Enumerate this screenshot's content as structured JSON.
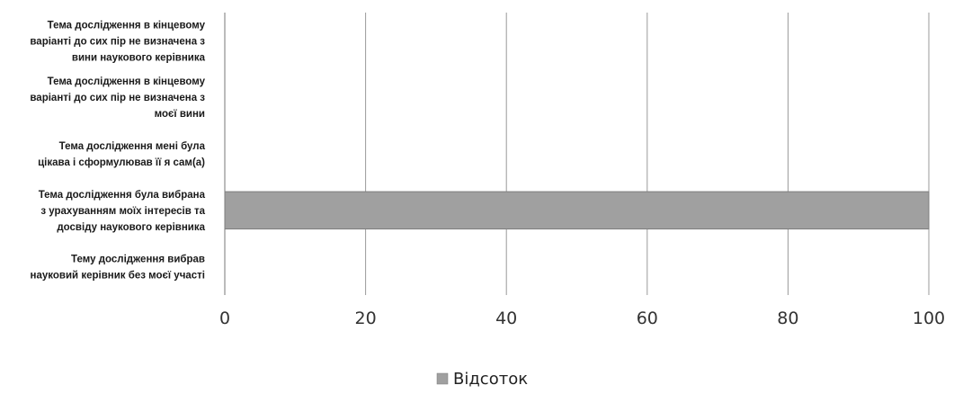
{
  "chart_data": {
    "type": "bar",
    "orientation": "horizontal",
    "categories": [
      [
        "Тема дослідження в кінцевому",
        "варіанті до сих пір не визначена з",
        "вини наукового керівника"
      ],
      [
        "Тема дослідження в кінцевому",
        "варіанті до сих пір не визначена з",
        "моєї вини"
      ],
      [
        "Тема дослідження мені була",
        "цікава і сформулював її я сам(а)"
      ],
      [
        "Тема дослідження була вибрана",
        "з урахуванням моїх інтересів та",
        "досвіду наукового керівника"
      ],
      [
        "Тему дослідження вибрав",
        "науковий керівник без моєї участі"
      ]
    ],
    "series": [
      {
        "name": "Відсоток",
        "values": [
          0,
          0,
          0,
          100,
          0
        ],
        "color": "#a0a0a0"
      }
    ],
    "xlim": [
      0,
      100
    ],
    "xticks": [
      "0",
      "20",
      "40",
      "60",
      "80",
      "100"
    ],
    "grid": true,
    "legend_position": "bottom"
  }
}
